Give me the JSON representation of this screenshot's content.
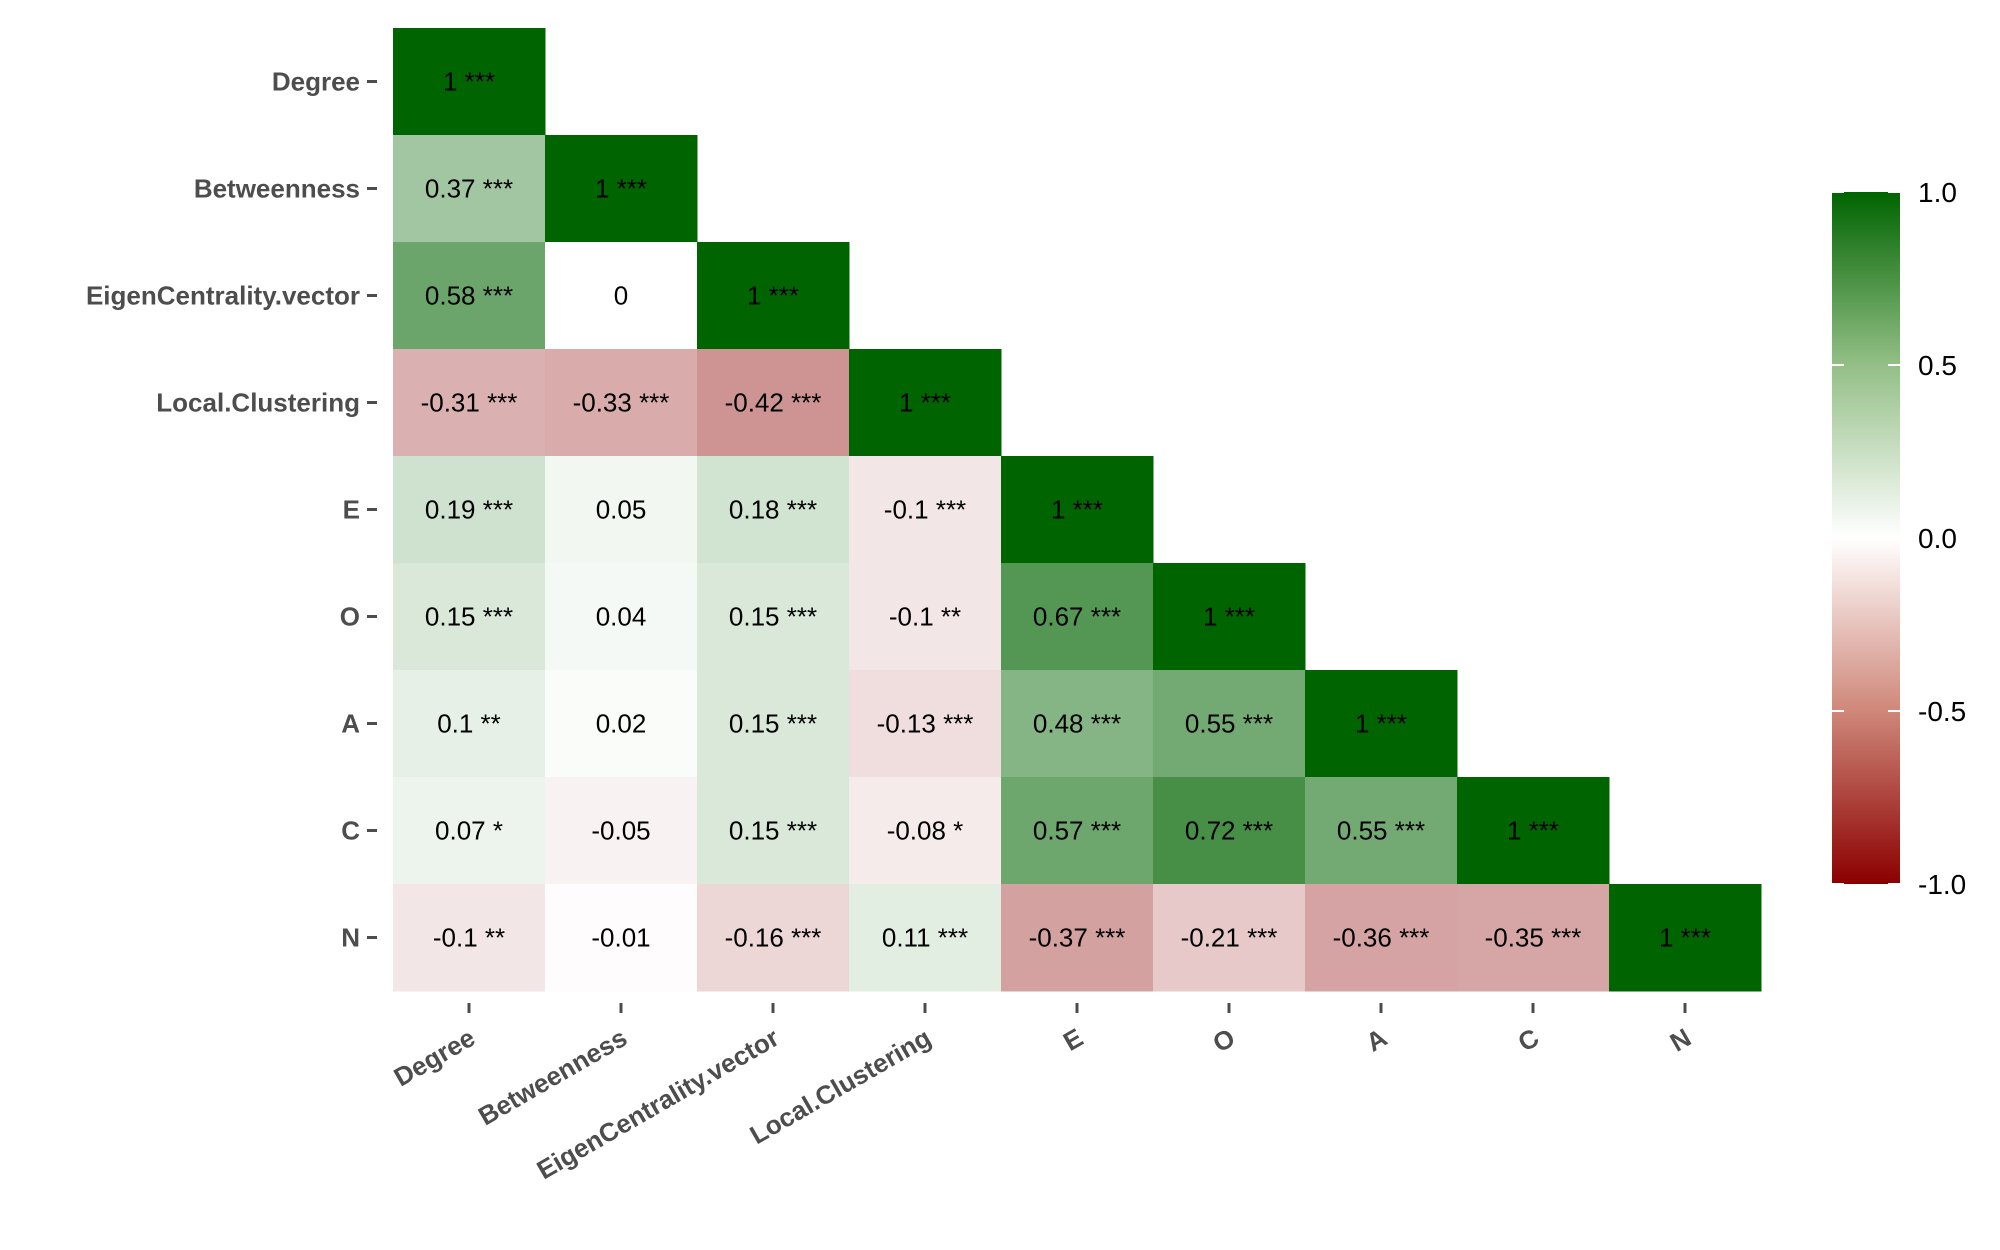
{
  "chart_data": {
    "type": "heatmap",
    "variables": [
      "Degree",
      "Betweenness",
      "EigenCentrality.vector",
      "Local.Clustering",
      "E",
      "O",
      "A",
      "C",
      "N"
    ],
    "cells": [
      {
        "row": "Degree",
        "col": "Degree",
        "value": 1,
        "label": "1 ***"
      },
      {
        "row": "Betweenness",
        "col": "Degree",
        "value": 0.37,
        "label": "0.37 ***"
      },
      {
        "row": "Betweenness",
        "col": "Betweenness",
        "value": 1,
        "label": "1 ***"
      },
      {
        "row": "EigenCentrality.vector",
        "col": "Degree",
        "value": 0.58,
        "label": "0.58 ***"
      },
      {
        "row": "EigenCentrality.vector",
        "col": "Betweenness",
        "value": 0,
        "label": "0"
      },
      {
        "row": "EigenCentrality.vector",
        "col": "EigenCentrality.vector",
        "value": 1,
        "label": "1 ***"
      },
      {
        "row": "Local.Clustering",
        "col": "Degree",
        "value": -0.31,
        "label": "-0.31 ***"
      },
      {
        "row": "Local.Clustering",
        "col": "Betweenness",
        "value": -0.33,
        "label": "-0.33 ***"
      },
      {
        "row": "Local.Clustering",
        "col": "EigenCentrality.vector",
        "value": -0.42,
        "label": "-0.42 ***"
      },
      {
        "row": "Local.Clustering",
        "col": "Local.Clustering",
        "value": 1,
        "label": "1 ***"
      },
      {
        "row": "E",
        "col": "Degree",
        "value": 0.19,
        "label": "0.19 ***"
      },
      {
        "row": "E",
        "col": "Betweenness",
        "value": 0.05,
        "label": "0.05"
      },
      {
        "row": "E",
        "col": "EigenCentrality.vector",
        "value": 0.18,
        "label": "0.18 ***"
      },
      {
        "row": "E",
        "col": "Local.Clustering",
        "value": -0.1,
        "label": "-0.1 ***"
      },
      {
        "row": "E",
        "col": "E",
        "value": 1,
        "label": "1 ***"
      },
      {
        "row": "O",
        "col": "Degree",
        "value": 0.15,
        "label": "0.15 ***"
      },
      {
        "row": "O",
        "col": "Betweenness",
        "value": 0.04,
        "label": "0.04"
      },
      {
        "row": "O",
        "col": "EigenCentrality.vector",
        "value": 0.15,
        "label": "0.15 ***"
      },
      {
        "row": "O",
        "col": "Local.Clustering",
        "value": -0.1,
        "label": "-0.1 **"
      },
      {
        "row": "O",
        "col": "E",
        "value": 0.67,
        "label": "0.67 ***"
      },
      {
        "row": "O",
        "col": "O",
        "value": 1,
        "label": "1 ***"
      },
      {
        "row": "A",
        "col": "Degree",
        "value": 0.1,
        "label": "0.1 **"
      },
      {
        "row": "A",
        "col": "Betweenness",
        "value": 0.02,
        "label": "0.02"
      },
      {
        "row": "A",
        "col": "EigenCentrality.vector",
        "value": 0.15,
        "label": "0.15 ***"
      },
      {
        "row": "A",
        "col": "Local.Clustering",
        "value": -0.13,
        "label": "-0.13 ***"
      },
      {
        "row": "A",
        "col": "E",
        "value": 0.48,
        "label": "0.48 ***"
      },
      {
        "row": "A",
        "col": "O",
        "value": 0.55,
        "label": "0.55 ***"
      },
      {
        "row": "A",
        "col": "A",
        "value": 1,
        "label": "1 ***"
      },
      {
        "row": "C",
        "col": "Degree",
        "value": 0.07,
        "label": "0.07 *"
      },
      {
        "row": "C",
        "col": "Betweenness",
        "value": -0.05,
        "label": "-0.05"
      },
      {
        "row": "C",
        "col": "EigenCentrality.vector",
        "value": 0.15,
        "label": "0.15 ***"
      },
      {
        "row": "C",
        "col": "Local.Clustering",
        "value": -0.08,
        "label": "-0.08 *"
      },
      {
        "row": "C",
        "col": "E",
        "value": 0.57,
        "label": "0.57 ***"
      },
      {
        "row": "C",
        "col": "O",
        "value": 0.72,
        "label": "0.72 ***"
      },
      {
        "row": "C",
        "col": "A",
        "value": 0.55,
        "label": "0.55 ***"
      },
      {
        "row": "C",
        "col": "C",
        "value": 1,
        "label": "1 ***"
      },
      {
        "row": "N",
        "col": "Degree",
        "value": -0.1,
        "label": "-0.1 **"
      },
      {
        "row": "N",
        "col": "Betweenness",
        "value": -0.01,
        "label": "-0.01"
      },
      {
        "row": "N",
        "col": "EigenCentrality.vector",
        "value": -0.16,
        "label": "-0.16 ***"
      },
      {
        "row": "N",
        "col": "Local.Clustering",
        "value": 0.11,
        "label": "0.11 ***"
      },
      {
        "row": "N",
        "col": "E",
        "value": -0.37,
        "label": "-0.37 ***"
      },
      {
        "row": "N",
        "col": "O",
        "value": -0.21,
        "label": "-0.21 ***"
      },
      {
        "row": "N",
        "col": "A",
        "value": -0.36,
        "label": "-0.36 ***"
      },
      {
        "row": "N",
        "col": "C",
        "value": -0.35,
        "label": "-0.35 ***"
      },
      {
        "row": "N",
        "col": "N",
        "value": 1,
        "label": "1 ***"
      }
    ],
    "color_scale": {
      "low": "#8b0000",
      "mid": "#ffffff",
      "high": "#006400",
      "range": [
        -1.0,
        1.0
      ],
      "ticks": [
        "1.0",
        "0.5",
        "0.0",
        "-0.5",
        "-1.0"
      ]
    },
    "legend_position": "right",
    "title": "",
    "xlabel": "",
    "ylabel": ""
  }
}
